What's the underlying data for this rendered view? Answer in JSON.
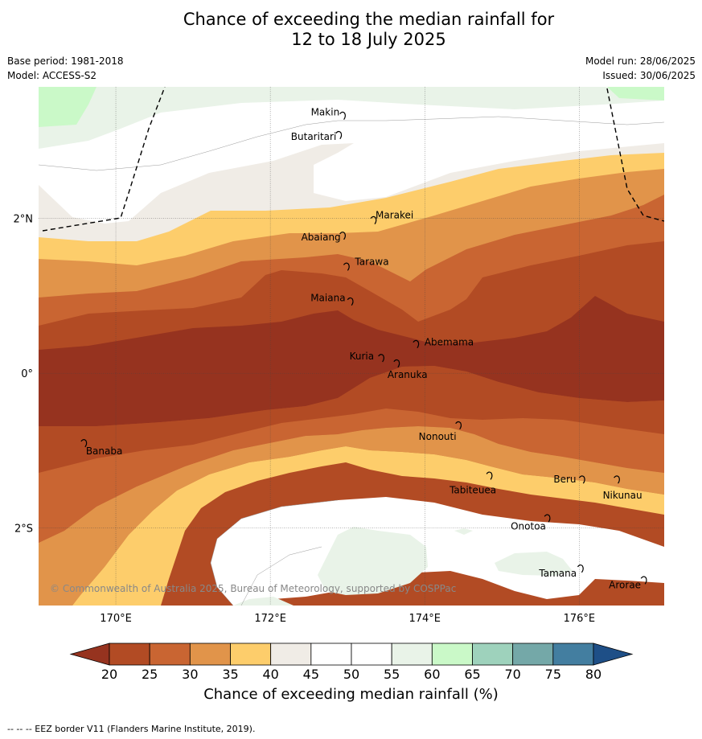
{
  "title": {
    "line1": "Chance of exceeding the median rainfall for",
    "line2": "12 to 18 July 2025"
  },
  "meta": {
    "base_period": "Base period: 1981-2018",
    "model": "Model: ACCESS-S2",
    "model_run": "Model run: 28/06/2025",
    "issued": "Issued: 30/06/2025"
  },
  "map": {
    "lon_range": [
      169,
      177.1
    ],
    "lat_range": [
      -3,
      3.7
    ],
    "lon_ticks": [
      {
        "value": 170,
        "label": "170°E"
      },
      {
        "value": 172,
        "label": "172°E"
      },
      {
        "value": 174,
        "label": "174°E"
      },
      {
        "value": 176,
        "label": "176°E"
      }
    ],
    "lat_ticks": [
      {
        "value": 2,
        "label": "2°N"
      },
      {
        "value": 0,
        "label": "0°"
      },
      {
        "value": -2,
        "label": "2°S"
      }
    ],
    "copyright": "© Commonwealth of Australia 2025, Bureau of Meteorology, supported by COSPPac",
    "islands": [
      {
        "name": "Makin",
        "lon": 172.9,
        "lat": 3.35
      },
      {
        "name": "Butaritari",
        "lon": 172.85,
        "lat": 3.1
      },
      {
        "name": "Marakei",
        "lon": 173.3,
        "lat": 2.0
      },
      {
        "name": "Abaiang",
        "lon": 172.9,
        "lat": 1.8
      },
      {
        "name": "Tarawa",
        "lon": 172.95,
        "lat": 1.4
      },
      {
        "name": "Maiana",
        "lon": 173.0,
        "lat": 0.95
      },
      {
        "name": "Abemama",
        "lon": 173.85,
        "lat": 0.4
      },
      {
        "name": "Kuria",
        "lon": 173.4,
        "lat": 0.22
      },
      {
        "name": "Aranuka",
        "lon": 173.6,
        "lat": 0.15
      },
      {
        "name": "Nonouti",
        "lon": 174.4,
        "lat": -0.65
      },
      {
        "name": "Banaba",
        "lon": 169.55,
        "lat": -0.88
      },
      {
        "name": "Tabiteuea",
        "lon": 174.8,
        "lat": -1.3
      },
      {
        "name": "Beru",
        "lon": 176.0,
        "lat": -1.35
      },
      {
        "name": "Nikunau",
        "lon": 176.45,
        "lat": -1.35
      },
      {
        "name": "Onotoa",
        "lon": 175.55,
        "lat": -1.85
      },
      {
        "name": "Tamana",
        "lon": 175.98,
        "lat": -2.5
      },
      {
        "name": "Arorae",
        "lon": 176.8,
        "lat": -2.65
      }
    ],
    "eez_color": "#000000"
  },
  "colorbar": {
    "ticks": [
      "20",
      "25",
      "30",
      "35",
      "40",
      "45",
      "50",
      "55",
      "60",
      "65",
      "70",
      "75",
      "80"
    ],
    "colors": [
      "#b24b24",
      "#c96532",
      "#e1944a",
      "#fdcd6b",
      "#f0ece6",
      "#ffffff",
      "#ffffff",
      "#e9f3e8",
      "#caf9c8",
      "#9ed2bc",
      "#74a8a8",
      "#437ea0"
    ],
    "under_color": "#96331f",
    "over_color": "#1e4f87",
    "title": "Chance of exceeding median rainfall (%)"
  },
  "footnote": "--  --  -- EEZ border V11 (Flanders Marine Institute, 2019)."
}
